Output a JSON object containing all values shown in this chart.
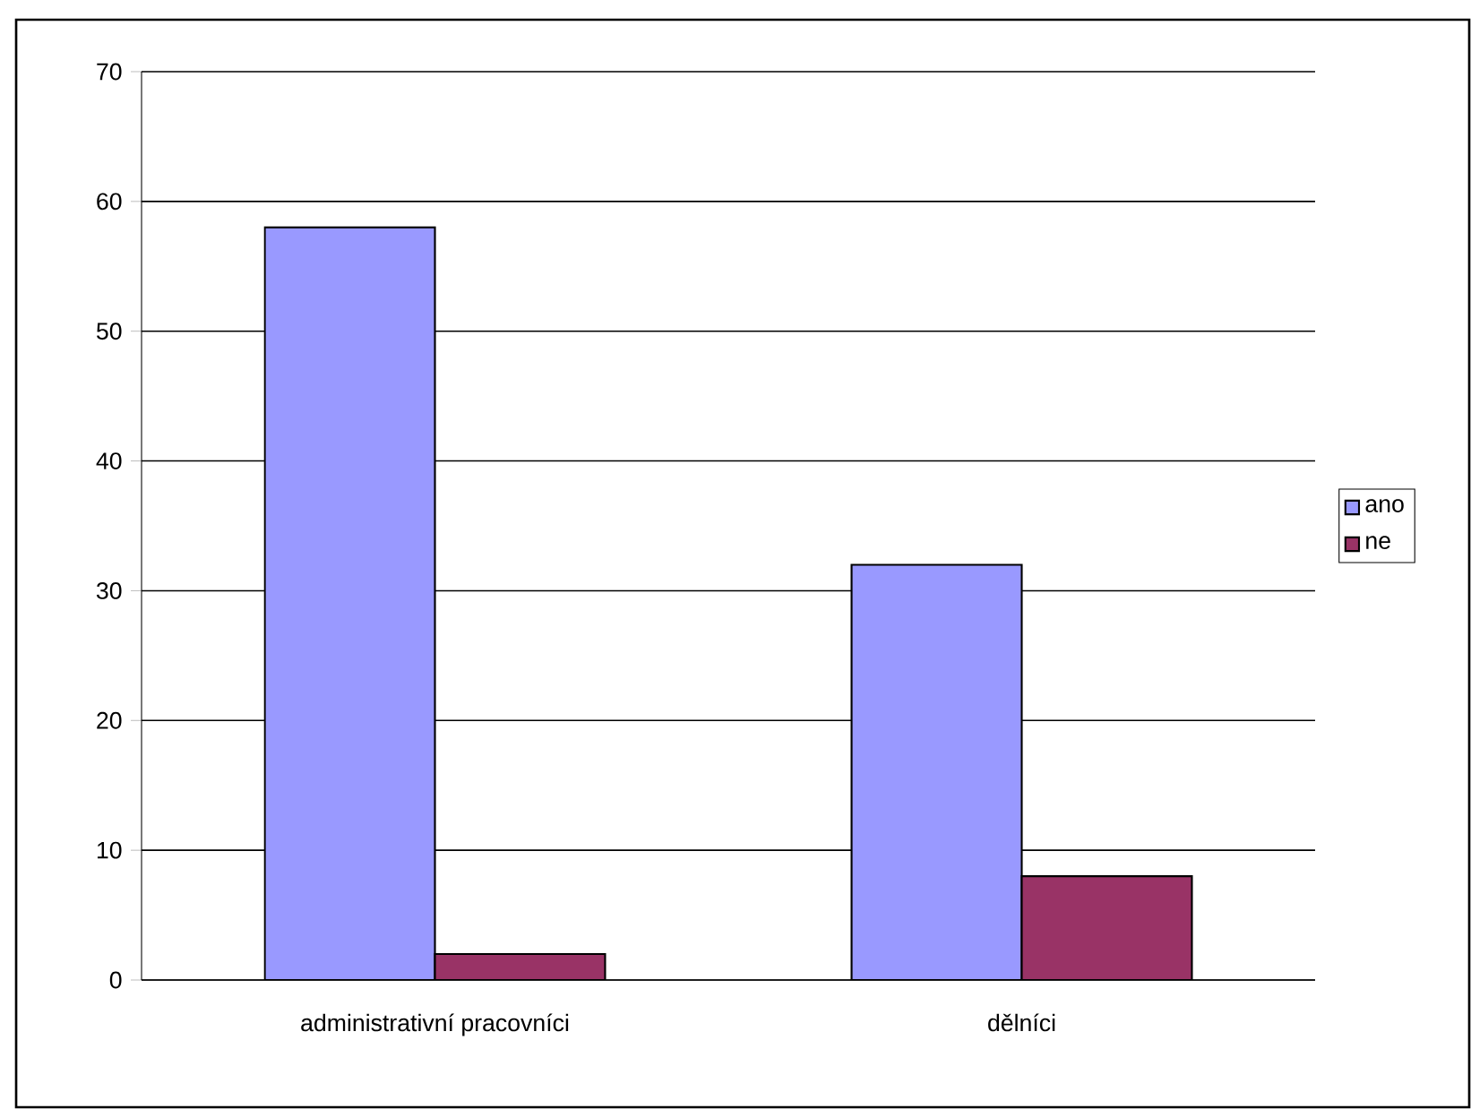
{
  "chart_data": {
    "type": "bar",
    "categories": [
      "administrativní pracovníci",
      "dělníci"
    ],
    "series": [
      {
        "name": "ano",
        "color": "#9999ff",
        "values": [
          58,
          32
        ]
      },
      {
        "name": "ne",
        "color": "#993366",
        "values": [
          2,
          8
        ]
      }
    ],
    "ylim": [
      0,
      70
    ],
    "yticks": [
      0,
      10,
      20,
      30,
      40,
      50,
      60,
      70
    ],
    "grid": "y",
    "legend": "right"
  }
}
